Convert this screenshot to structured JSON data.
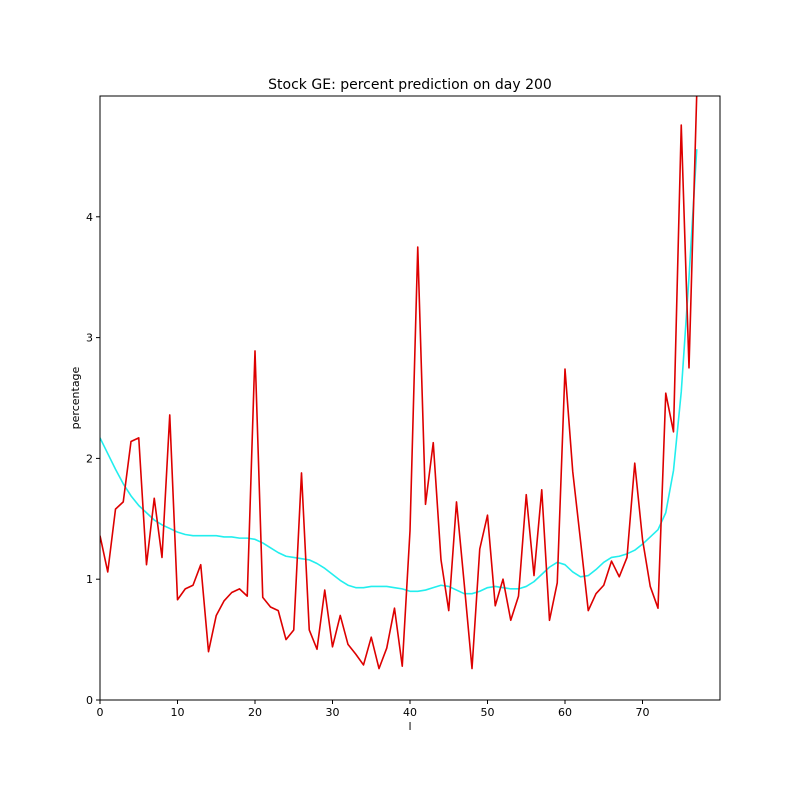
{
  "chart_data": {
    "type": "line",
    "title": "Stock GE: percent prediction on day 200",
    "xlabel": "l",
    "ylabel": "percentage",
    "xlim": [
      0,
      80
    ],
    "ylim": [
      0,
      5
    ],
    "xticks": [
      0,
      10,
      20,
      30,
      40,
      50,
      60,
      70
    ],
    "yticks": [
      0,
      1,
      2,
      3,
      4
    ],
    "grid": false,
    "series": [
      {
        "color": "#dd0000",
        "x": [
          0,
          1,
          2,
          3,
          4,
          5,
          6,
          7,
          8,
          9,
          10,
          11,
          12,
          13,
          14,
          15,
          16,
          17,
          18,
          19,
          20,
          21,
          22,
          23,
          24,
          25,
          26,
          27,
          28,
          29,
          30,
          31,
          32,
          33,
          34,
          35,
          36,
          37,
          38,
          39,
          40,
          41,
          42,
          43,
          44,
          45,
          46,
          47,
          48,
          49,
          50,
          51,
          52,
          53,
          54,
          55,
          56,
          57,
          58,
          59,
          60,
          61,
          62,
          63,
          64,
          65,
          66,
          67,
          68,
          69,
          70,
          71,
          72,
          73,
          74,
          75,
          76,
          77,
          78
        ],
        "y": [
          1.36,
          1.06,
          1.58,
          1.64,
          2.14,
          2.17,
          1.12,
          1.67,
          1.18,
          2.36,
          0.83,
          0.92,
          0.95,
          1.12,
          0.4,
          0.7,
          0.82,
          0.89,
          0.92,
          0.86,
          2.89,
          0.85,
          0.77,
          0.74,
          0.5,
          0.58,
          1.88,
          0.58,
          0.42,
          0.91,
          0.44,
          0.7,
          0.46,
          0.38,
          0.29,
          0.52,
          0.26,
          0.43,
          0.76,
          0.28,
          1.4,
          3.75,
          1.62,
          2.13,
          1.16,
          0.74,
          1.64,
          0.96,
          0.26,
          1.25,
          1.53,
          0.78,
          1.0,
          0.66,
          0.86,
          1.7,
          1.03,
          1.74,
          0.66,
          0.97,
          2.74,
          1.89,
          1.32,
          0.74,
          0.88,
          0.95,
          1.15,
          1.02,
          1.18,
          1.96,
          1.33,
          0.94,
          0.76,
          2.54,
          2.22,
          4.76,
          2.75,
          5.02,
          5.2
        ]
      },
      {
        "color": "#22eeee",
        "x": [
          0,
          1,
          2,
          3,
          4,
          5,
          6,
          7,
          8,
          9,
          10,
          11,
          12,
          13,
          14,
          15,
          16,
          17,
          18,
          19,
          20,
          21,
          22,
          23,
          24,
          25,
          26,
          27,
          28,
          29,
          30,
          31,
          32,
          33,
          34,
          35,
          36,
          37,
          38,
          39,
          40,
          41,
          42,
          43,
          44,
          45,
          46,
          47,
          48,
          49,
          50,
          51,
          52,
          53,
          54,
          55,
          56,
          57,
          58,
          59,
          60,
          61,
          62,
          63,
          64,
          65,
          66,
          67,
          68,
          69,
          70,
          71,
          72,
          73,
          74,
          75,
          76,
          77
        ],
        "y": [
          2.17,
          2.04,
          1.91,
          1.79,
          1.69,
          1.61,
          1.55,
          1.49,
          1.45,
          1.42,
          1.39,
          1.37,
          1.36,
          1.36,
          1.36,
          1.36,
          1.35,
          1.35,
          1.34,
          1.34,
          1.33,
          1.3,
          1.26,
          1.22,
          1.19,
          1.18,
          1.17,
          1.16,
          1.13,
          1.09,
          1.04,
          0.99,
          0.95,
          0.93,
          0.93,
          0.94,
          0.94,
          0.94,
          0.93,
          0.92,
          0.9,
          0.9,
          0.91,
          0.93,
          0.95,
          0.94,
          0.91,
          0.88,
          0.88,
          0.9,
          0.93,
          0.94,
          0.93,
          0.92,
          0.92,
          0.94,
          0.98,
          1.04,
          1.1,
          1.14,
          1.12,
          1.06,
          1.02,
          1.03,
          1.08,
          1.14,
          1.18,
          1.19,
          1.21,
          1.24,
          1.29,
          1.35,
          1.41,
          1.55,
          1.9,
          2.55,
          3.5,
          4.56
        ]
      }
    ]
  }
}
